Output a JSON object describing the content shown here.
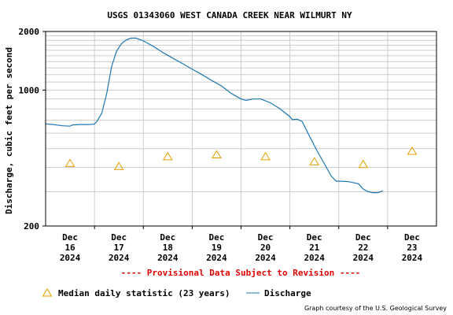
{
  "chart_data": {
    "type": "line",
    "title": "USGS 01343060 WEST CANADA CREEK NEAR WILMURT NY",
    "ylabel": "Discharge, cubic feet per second",
    "xlabel": "",
    "y_scale": "log",
    "ylim": [
      200,
      2000
    ],
    "y_ticks": [
      {
        "value": 200,
        "label": "200"
      },
      {
        "value": 1000,
        "label": "1000"
      },
      {
        "value": 2000,
        "label": "2000"
      }
    ],
    "xlim": [
      0,
      8
    ],
    "x_ticks": [
      {
        "month": "Dec",
        "day": "16",
        "year": "2024"
      },
      {
        "month": "Dec",
        "day": "17",
        "year": "2024"
      },
      {
        "month": "Dec",
        "day": "18",
        "year": "2024"
      },
      {
        "month": "Dec",
        "day": "19",
        "year": "2024"
      },
      {
        "month": "Dec",
        "day": "20",
        "year": "2024"
      },
      {
        "month": "Dec",
        "day": "21",
        "year": "2024"
      },
      {
        "month": "Dec",
        "day": "22",
        "year": "2024"
      },
      {
        "month": "Dec",
        "day": "23",
        "year": "2024"
      }
    ],
    "grid": true,
    "series": [
      {
        "name": "Discharge",
        "color": "#1f77b4",
        "points": [
          [
            0.0,
            670
          ],
          [
            0.15,
            665
          ],
          [
            0.35,
            655
          ],
          [
            0.5,
            652
          ],
          [
            0.55,
            662
          ],
          [
            0.7,
            665
          ],
          [
            0.9,
            665
          ],
          [
            1.0,
            668
          ],
          [
            1.05,
            690
          ],
          [
            1.15,
            760
          ],
          [
            1.25,
            960
          ],
          [
            1.35,
            1320
          ],
          [
            1.45,
            1580
          ],
          [
            1.55,
            1730
          ],
          [
            1.65,
            1810
          ],
          [
            1.75,
            1850
          ],
          [
            1.85,
            1850
          ],
          [
            2.0,
            1790
          ],
          [
            2.2,
            1680
          ],
          [
            2.4,
            1560
          ],
          [
            2.6,
            1460
          ],
          [
            2.8,
            1370
          ],
          [
            3.0,
            1280
          ],
          [
            3.2,
            1200
          ],
          [
            3.4,
            1120
          ],
          [
            3.6,
            1050
          ],
          [
            3.8,
            960
          ],
          [
            4.0,
            900
          ],
          [
            4.1,
            885
          ],
          [
            4.25,
            900
          ],
          [
            4.4,
            900
          ],
          [
            4.6,
            860
          ],
          [
            4.8,
            800
          ],
          [
            5.0,
            730
          ],
          [
            5.05,
            705
          ],
          [
            5.15,
            708
          ],
          [
            5.25,
            690
          ],
          [
            5.4,
            580
          ],
          [
            5.55,
            490
          ],
          [
            5.7,
            420
          ],
          [
            5.85,
            360
          ],
          [
            5.95,
            340
          ],
          [
            6.05,
            340
          ],
          [
            6.2,
            338
          ],
          [
            6.4,
            330
          ],
          [
            6.5,
            310
          ],
          [
            6.6,
            300
          ],
          [
            6.7,
            297
          ],
          [
            6.8,
            297
          ],
          [
            6.9,
            303
          ]
        ]
      },
      {
        "name": "Median daily statistic (23 years)",
        "marker": "triangle",
        "color": "#e69f00",
        "points": [
          [
            0.5,
            420
          ],
          [
            1.5,
            405
          ],
          [
            2.5,
            455
          ],
          [
            3.5,
            465
          ],
          [
            4.5,
            455
          ],
          [
            5.5,
            428
          ],
          [
            6.5,
            415
          ],
          [
            7.5,
            485
          ]
        ]
      }
    ],
    "provisional_note": "---- Provisional Data Subject to Revision ----",
    "legend": {
      "position": "bottom",
      "median_label": "Median daily statistic (23 years)",
      "discharge_label": "Discharge"
    },
    "credit": "Graph courtesy of the U.S. Geological Survey"
  },
  "colors": {
    "frame": "#000000",
    "grid": "#cccccc",
    "discharge": "#1f77b4",
    "median": "#e69f00",
    "provisional": "#e00000"
  }
}
